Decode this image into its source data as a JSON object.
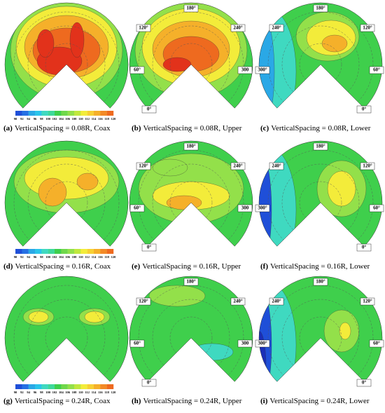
{
  "panels": [
    {
      "label": "(a)",
      "caption": "VerticalSpacing = 0.08R, Coax",
      "colorbar_ticks": [
        90,
        92,
        94,
        96,
        98,
        100,
        102,
        104,
        106,
        108,
        110,
        112,
        114,
        116,
        118,
        120
      ]
    },
    {
      "label": "(b)",
      "caption": "VerticalSpacing = 0.08R, Upper",
      "angle_labels": [
        "180°",
        "120°",
        "240°",
        "60°",
        "300",
        "0°"
      ]
    },
    {
      "label": "(c)",
      "caption": "VerticalSpacing = 0.08R, Lower",
      "angle_labels": [
        "180°",
        "240°",
        "120°",
        "300°",
        "60°",
        "0°"
      ]
    },
    {
      "label": "(d)",
      "caption": "VerticalSpacing = 0.16R, Coax",
      "colorbar_ticks": [
        90,
        92,
        94,
        96,
        98,
        100,
        102,
        104,
        106,
        108,
        110,
        112,
        114,
        116,
        118,
        120
      ]
    },
    {
      "label": "(e)",
      "caption": "VerticalSpacing = 0.16R, Upper",
      "angle_labels": [
        "180°",
        "120°",
        "240°",
        "60°",
        "300",
        "0°"
      ]
    },
    {
      "label": "(f)",
      "caption": "VerticalSpacing = 0.16R, Lower",
      "angle_labels": [
        "180°",
        "240°",
        "120°",
        "300°",
        "60°",
        "0°"
      ]
    },
    {
      "label": "(g)",
      "caption": "VerticalSpacing = 0.24R, Coax",
      "colorbar_ticks": [
        90,
        92,
        94,
        96,
        98,
        100,
        102,
        104,
        106,
        108,
        110,
        112,
        114,
        116,
        118,
        120
      ]
    },
    {
      "label": "(h)",
      "caption": "VerticalSpacing = 0.24R, Upper",
      "angle_labels": [
        "180°",
        "120°",
        "240°",
        "60°",
        "300",
        "0°"
      ]
    },
    {
      "label": "(i)",
      "caption": "VerticalSpacing = 0.24R, Lower",
      "angle_labels": [
        "180°",
        "240°",
        "120°",
        "300°",
        "60°",
        "0°"
      ]
    }
  ]
}
